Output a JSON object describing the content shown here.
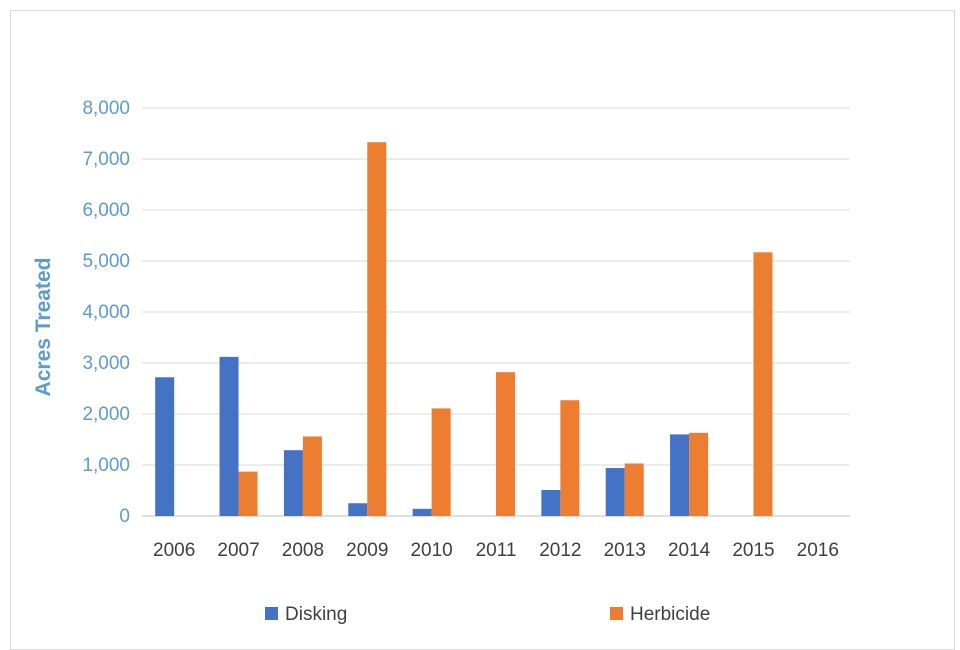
{
  "chart_data": {
    "type": "bar",
    "title": "",
    "xlabel": "",
    "ylabel": "Acres Treated",
    "ylim": [
      0,
      8000
    ],
    "yticks": [
      0,
      1000,
      2000,
      3000,
      4000,
      5000,
      6000,
      7000,
      8000
    ],
    "ytick_labels": [
      "0",
      "1,000",
      "2,000",
      "3,000",
      "4,000",
      "5,000",
      "6,000",
      "7,000",
      "8,000"
    ],
    "categories": [
      "2006",
      "2007",
      "2008",
      "2009",
      "2010",
      "2011",
      "2012",
      "2013",
      "2014",
      "2015",
      "2016"
    ],
    "series": [
      {
        "name": "Disking",
        "color": "#4472c4",
        "values": [
          2720,
          3120,
          1290,
          250,
          140,
          0,
          510,
          940,
          1600,
          0,
          0
        ]
      },
      {
        "name": "Herbicide",
        "color": "#ed7d31",
        "values": [
          0,
          870,
          1560,
          7330,
          2110,
          2820,
          2270,
          1030,
          1630,
          5170,
          0
        ]
      }
    ],
    "grid": true,
    "legend": "bottom"
  }
}
